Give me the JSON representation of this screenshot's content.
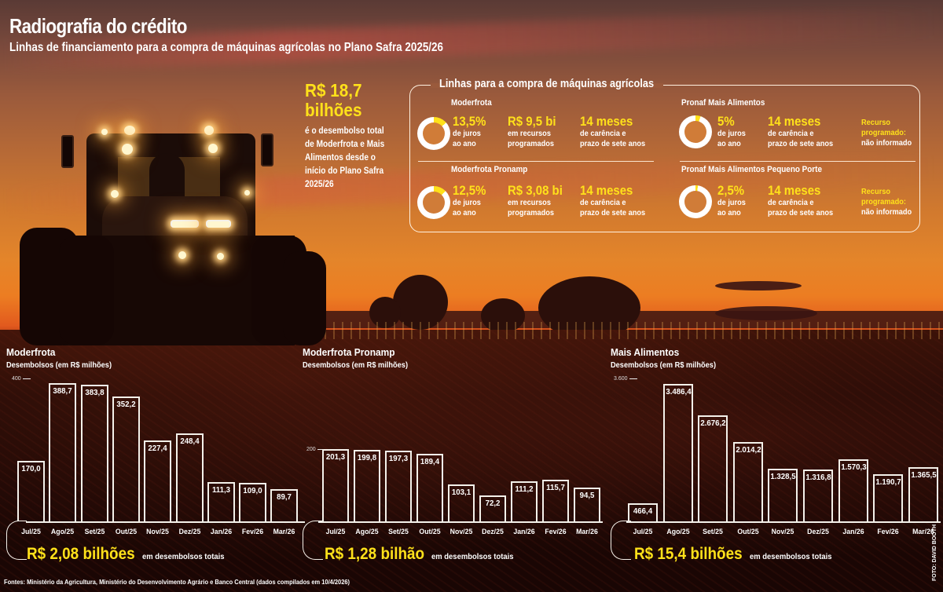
{
  "header": {
    "title": "Radiografia do crédito",
    "subtitle": "Linhas de financiamento para a compra de máquinas agrícolas no Plano Safra 2025/26"
  },
  "callout": {
    "amount_line1": "R$ 18,7",
    "amount_line2": "bilhões",
    "desc": [
      "é o desembolso total",
      "de Moderfrota e Mais",
      "Alimentos desde o",
      "início do Plano Safra",
      "2025/26"
    ]
  },
  "panel": {
    "title": "Linhas para a compra de máquinas agrícolas",
    "lines": [
      {
        "name": "Moderfrota",
        "rate": "13,5%",
        "rate_pct": 13.5,
        "rate_label": [
          "de juros",
          "ao ano"
        ],
        "resources": "R$ 9,5 bi",
        "resources_label": [
          "em recursos",
          "programados"
        ],
        "grace": "14 meses",
        "grace_label": [
          "de carência e",
          "prazo de sete anos"
        ]
      },
      {
        "name": "Pronaf Mais Alimentos",
        "rate": "5%",
        "rate_pct": 5,
        "rate_label": [
          "de juros",
          "ao ano"
        ],
        "grace": "14 meses",
        "grace_label": [
          "de carência e",
          "prazo de sete anos"
        ],
        "resources_note": [
          "Recurso",
          "programado:",
          "não informado"
        ]
      },
      {
        "name": "Moderfrota Pronamp",
        "rate": "12,5%",
        "rate_pct": 12.5,
        "rate_label": [
          "de juros",
          "ao ano"
        ],
        "resources": "R$ 3,08 bi",
        "resources_label": [
          "em recursos",
          "programados"
        ],
        "grace": "14 meses",
        "grace_label": [
          "de carência e",
          "prazo de sete anos"
        ]
      },
      {
        "name": "Pronaf Mais Alimentos Pequeno Porte",
        "rate": "2,5%",
        "rate_pct": 2.5,
        "rate_label": [
          "de juros",
          "ao ano"
        ],
        "grace": "14 meses",
        "grace_label": [
          "de carência e",
          "prazo de sete anos"
        ],
        "resources_note": [
          "Recurso",
          "programado:",
          "não informado"
        ]
      }
    ]
  },
  "colors": {
    "accent_yellow": "#ffe11a",
    "donut_track": "#ffffff",
    "bar_outline": "#f4f1ea"
  },
  "chart_data": [
    {
      "type": "bar",
      "title": "Moderfrota",
      "ylabel": "Desembolsos (em R$ milhões)",
      "categories": [
        "Jul/25",
        "Ago/25",
        "Set/25",
        "Out/25",
        "Nov/25",
        "Dez/25",
        "Jan/26",
        "Fev/26",
        "Mar/26"
      ],
      "values": [
        170.0,
        388.7,
        383.8,
        352.2,
        227.4,
        248.4,
        111.3,
        109.0,
        89.7
      ],
      "value_labels": [
        "170,0",
        "388,7",
        "383,8",
        "352,2",
        "227,4",
        "248,4",
        "111,3",
        "109,0",
        "89,7"
      ],
      "ytick": "400",
      "ylim": [
        0,
        400
      ],
      "total": "R$ 2,08 bilhões",
      "total_label": "em desembolsos totais"
    },
    {
      "type": "bar",
      "title": "Moderfrota Pronamp",
      "ylabel": "Desembolsos (em R$ milhões)",
      "categories": [
        "Jul/25",
        "Ago/25",
        "Set/25",
        "Out/25",
        "Nov/25",
        "Dez/25",
        "Jan/26",
        "Fev/26",
        "Mar/26"
      ],
      "values": [
        201.3,
        199.8,
        197.3,
        189.4,
        103.1,
        72.2,
        111.2,
        115.7,
        94.5
      ],
      "value_labels": [
        "201,3",
        "199,8",
        "197,3",
        "189,4",
        "103,1",
        "72,2",
        "111,2",
        "115,7",
        "94,5"
      ],
      "ytick": "200",
      "ylim": [
        0,
        200
      ],
      "total": "R$ 1,28 bilhão",
      "total_label": "em desembolsos totais"
    },
    {
      "type": "bar",
      "title": "Mais Alimentos",
      "ylabel": "Desembolsos (em R$ milhões)",
      "categories": [
        "Jul/25",
        "Ago/25",
        "Set/25",
        "Out/25",
        "Nov/25",
        "Dez/25",
        "Jan/26",
        "Fev/26",
        "Mar/26"
      ],
      "values": [
        466.4,
        3486.4,
        2676.2,
        2014.2,
        1328.5,
        1316.8,
        1570.3,
        1190.7,
        1365.5
      ],
      "value_labels": [
        "466,4",
        "3.486,4",
        "2.676,2",
        "2.014,2",
        "1.328,5",
        "1.316,8",
        "1.570,3",
        "1.190,7",
        "1.365,5"
      ],
      "ytick": "3.600",
      "ylim": [
        0,
        3600
      ],
      "total": "R$ 15,4 bilhões",
      "total_label": "em desembolsos totais"
    }
  ],
  "footer": {
    "sources": "Fontes: Ministério da Agricultura, Ministério do Desenvolvimento Agrário e Banco Central (dados compilados em 10/4/2026)",
    "photo_credit": "FOTO: DAVID BOOTH"
  }
}
